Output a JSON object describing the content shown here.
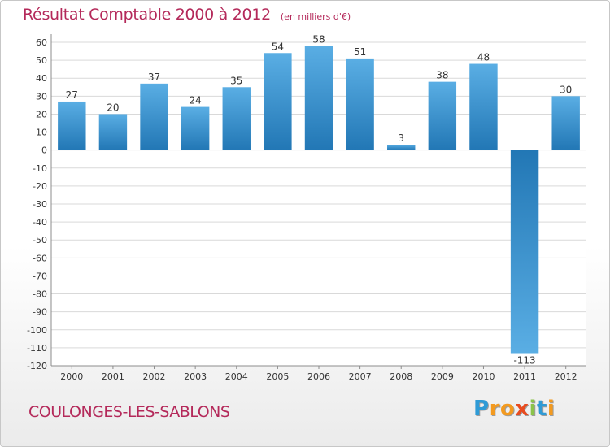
{
  "title": "Résultat Comptable 2000 à 2012",
  "subtitle": "(en milliers d'€)",
  "commune": "COULONGES-LES-SABLONS",
  "logo": {
    "letters": [
      "P",
      "r",
      "o",
      "x",
      "i",
      "t",
      "i"
    ],
    "colors": [
      "#2f9bd6",
      "#f39a1f",
      "#f39a1f",
      "#e84b1f",
      "#8bc34a",
      "#2f9bd6",
      "#f39a1f"
    ]
  },
  "colors": {
    "bar_top": "#5aaee4",
    "bar_bottom": "#2277b5",
    "grid": "#d9d9d9",
    "axis": "#8c8c8c",
    "text": "#333333",
    "accent": "#b4295a"
  },
  "chart_data": {
    "type": "bar",
    "title": "Résultat Comptable 2000 à 2012",
    "unit": "en milliers d'€",
    "categories": [
      "2000",
      "2001",
      "2002",
      "2003",
      "2004",
      "2005",
      "2006",
      "2007",
      "2008",
      "2009",
      "2010",
      "2011",
      "2012"
    ],
    "values": [
      27,
      20,
      37,
      24,
      35,
      54,
      58,
      51,
      3,
      38,
      48,
      -113,
      30
    ],
    "value_labels": [
      "27",
      "20",
      "37",
      "24",
      "35",
      "54",
      "58",
      "51",
      "3",
      "38",
      "48",
      "-113",
      "30"
    ],
    "ylim": [
      -120,
      60
    ],
    "yticks": [
      60,
      50,
      40,
      30,
      20,
      10,
      0,
      -10,
      -20,
      -30,
      -40,
      -50,
      -60,
      -70,
      -80,
      -90,
      -100,
      -110,
      -120
    ],
    "ytick_labels": [
      "60",
      "50",
      "40",
      "30",
      "20",
      "10",
      "0",
      "-10",
      "-20",
      "-30",
      "-40",
      "-50",
      "-60",
      "-70",
      "-80",
      "-90",
      "-100",
      "-110",
      "-120"
    ],
    "grid": true,
    "xlabel": "",
    "ylabel": ""
  }
}
